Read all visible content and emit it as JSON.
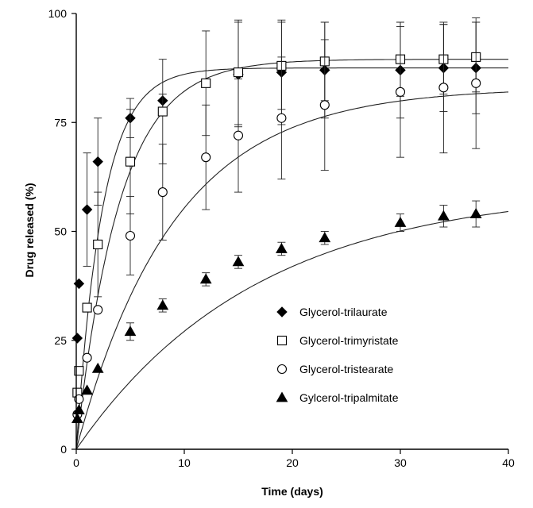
{
  "chart_data": {
    "type": "scatter",
    "title": "",
    "xlabel": "Time (days)",
    "ylabel": "Drug released (%)",
    "xlim": [
      0,
      40
    ],
    "ylim": [
      0,
      100
    ],
    "xticks": [
      0,
      10,
      20,
      30,
      40
    ],
    "yticks": [
      0,
      25,
      50,
      75,
      100
    ],
    "legend_position": "lower-right",
    "series": [
      {
        "name": "Glycerol-trilaurate",
        "marker": "diamond-filled",
        "points": [
          {
            "x": 0.1,
            "y": 25.5,
            "err": 0
          },
          {
            "x": 0.25,
            "y": 38,
            "err": 0
          },
          {
            "x": 1,
            "y": 55,
            "err": 13
          },
          {
            "x": 2,
            "y": 66,
            "err": 10
          },
          {
            "x": 5,
            "y": 76,
            "err": 4.5
          },
          {
            "x": 8,
            "y": 80,
            "err": 1.5
          },
          {
            "x": 15,
            "y": 86,
            "err": 12
          },
          {
            "x": 19,
            "y": 86.5,
            "err": 12
          },
          {
            "x": 23,
            "y": 87,
            "err": 11
          },
          {
            "x": 30,
            "y": 87,
            "err": 11
          },
          {
            "x": 34,
            "y": 87.5,
            "err": 10
          },
          {
            "x": 37,
            "y": 87.5,
            "err": 10.5
          }
        ],
        "fit": {
          "plateau": 87.5,
          "k": 0.41
        }
      },
      {
        "name": "Glycerol-trimyristate",
        "marker": "square-open",
        "points": [
          {
            "x": 0.1,
            "y": 13,
            "err": 0
          },
          {
            "x": 0.25,
            "y": 18,
            "err": 0
          },
          {
            "x": 1,
            "y": 32.5,
            "err": 0
          },
          {
            "x": 2,
            "y": 47,
            "err": 12
          },
          {
            "x": 5,
            "y": 66,
            "err": 12
          },
          {
            "x": 8,
            "y": 77.5,
            "err": 12
          },
          {
            "x": 12,
            "y": 84,
            "err": 12
          },
          {
            "x": 15,
            "y": 86.5,
            "err": 12
          },
          {
            "x": 19,
            "y": 88,
            "err": 10
          },
          {
            "x": 23,
            "y": 89,
            "err": 9
          },
          {
            "x": 30,
            "y": 89.5,
            "err": 8.5
          },
          {
            "x": 34,
            "y": 89.5,
            "err": 8
          },
          {
            "x": 37,
            "y": 90,
            "err": 8
          }
        ],
        "fit": {
          "plateau": 89.5,
          "k": 0.25
        }
      },
      {
        "name": "Glycerol-tristearate",
        "marker": "circle-open",
        "points": [
          {
            "x": 0.1,
            "y": 8,
            "err": 0
          },
          {
            "x": 0.25,
            "y": 11.5,
            "err": 0
          },
          {
            "x": 1,
            "y": 21,
            "err": 0
          },
          {
            "x": 2,
            "y": 32,
            "err": 0
          },
          {
            "x": 5,
            "y": 49,
            "err": 9
          },
          {
            "x": 8,
            "y": 59,
            "err": 11
          },
          {
            "x": 12,
            "y": 67,
            "err": 12
          },
          {
            "x": 15,
            "y": 72,
            "err": 13
          },
          {
            "x": 19,
            "y": 76,
            "err": 14
          },
          {
            "x": 23,
            "y": 79,
            "err": 15
          },
          {
            "x": 30,
            "y": 82,
            "err": 15
          },
          {
            "x": 34,
            "y": 83,
            "err": 15
          },
          {
            "x": 37,
            "y": 84,
            "err": 15
          }
        ],
        "fit": {
          "plateau": 83,
          "k": 0.11
        }
      },
      {
        "name": "Gylcerol-tripalmitate",
        "marker": "triangle-filled",
        "points": [
          {
            "x": 0.1,
            "y": 7,
            "err": 0
          },
          {
            "x": 0.25,
            "y": 9,
            "err": 0
          },
          {
            "x": 1,
            "y": 13.5,
            "err": 0
          },
          {
            "x": 2,
            "y": 18.5,
            "err": 0
          },
          {
            "x": 5,
            "y": 27,
            "err": 2
          },
          {
            "x": 8,
            "y": 33,
            "err": 1.5
          },
          {
            "x": 12,
            "y": 39,
            "err": 1.5
          },
          {
            "x": 15,
            "y": 43,
            "err": 1.5
          },
          {
            "x": 19,
            "y": 46,
            "err": 1.5
          },
          {
            "x": 23,
            "y": 48.5,
            "err": 1.5
          },
          {
            "x": 30,
            "y": 52,
            "err": 2
          },
          {
            "x": 34,
            "y": 53.5,
            "err": 2.5
          },
          {
            "x": 37,
            "y": 54,
            "err": 3
          }
        ],
        "fit": {
          "plateau": 60,
          "k": 0.06
        }
      }
    ]
  }
}
